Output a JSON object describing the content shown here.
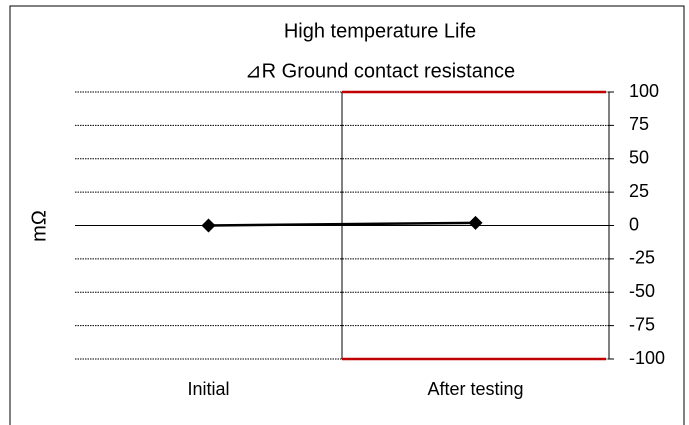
{
  "chart_data": {
    "type": "line",
    "title": "High temperature Life",
    "subtitle": "⊿R Ground contact resistance",
    "y_label": "mΩ",
    "categories": [
      "Initial",
      "After testing"
    ],
    "series": [
      {
        "color": "#000000",
        "values": [
          0,
          2
        ]
      }
    ],
    "ylim": [
      -100,
      100
    ],
    "yticks": [
      100,
      75,
      50,
      25,
      0,
      -25,
      -50,
      -75,
      -100
    ],
    "grid": true,
    "y_axis_side": "right",
    "limit_lines": {
      "color": "#c00000",
      "values": [
        100,
        -100
      ]
    }
  }
}
